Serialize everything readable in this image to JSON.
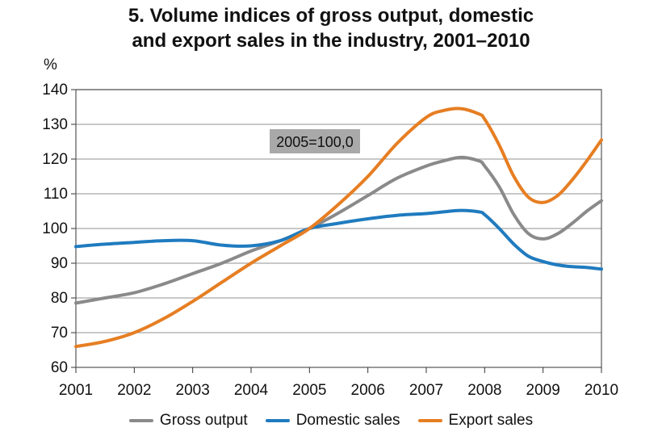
{
  "chart_data": {
    "type": "line",
    "title_line1": "5. Volume indices of gross output, domestic",
    "title_line2": "and export sales in the industry, 2001–2010",
    "ylabel": "%",
    "xlabel": "",
    "ylim": [
      60,
      140
    ],
    "xlim": [
      2001,
      2010
    ],
    "yticks": [
      "60",
      "70",
      "80",
      "90",
      "100",
      "110",
      "120",
      "130",
      "140"
    ],
    "xticks": [
      "2001",
      "2002",
      "2003",
      "2004",
      "2005",
      "2006",
      "2007",
      "2008",
      "2009",
      "2010"
    ],
    "grid": true,
    "legend_position": "bottom",
    "annotation": "2005=100,0",
    "series": [
      {
        "name": "Gross output",
        "color": "#8a8a8a",
        "x": [
          2001,
          2001.5,
          2002,
          2002.5,
          2003,
          2003.5,
          2004,
          2004.5,
          2005,
          2005.5,
          2006,
          2006.5,
          2007,
          2007.3,
          2007.6,
          2007.9,
          2008,
          2008.25,
          2008.5,
          2008.75,
          2009,
          2009.25,
          2009.5,
          2009.75,
          2010
        ],
        "values": [
          78.5,
          80,
          81.5,
          84,
          87,
          90,
          93.5,
          96.5,
          100,
          104.5,
          109.5,
          114.5,
          118,
          119.5,
          120.5,
          119.5,
          118,
          112,
          104,
          98.5,
          97,
          98.5,
          101.5,
          105,
          108
        ]
      },
      {
        "name": "Domestic sales",
        "color": "#1f7bbf",
        "x": [
          2001,
          2001.5,
          2002,
          2002.5,
          2003,
          2003.5,
          2004,
          2004.5,
          2005,
          2005.5,
          2006,
          2006.5,
          2007,
          2007.3,
          2007.6,
          2007.9,
          2008,
          2008.25,
          2008.5,
          2008.75,
          2009,
          2009.25,
          2009.5,
          2009.75,
          2010
        ],
        "values": [
          94.8,
          95.5,
          96,
          96.5,
          96.5,
          95.2,
          95,
          96.5,
          100,
          101.5,
          102.8,
          103.8,
          104.3,
          104.8,
          105.2,
          104.8,
          104,
          100,
          95.5,
          92,
          90.5,
          89.5,
          89,
          88.8,
          88.3
        ]
      },
      {
        "name": "Export sales",
        "color": "#e67e22",
        "x": [
          2001,
          2001.5,
          2002,
          2002.5,
          2003,
          2003.5,
          2004,
          2004.5,
          2005,
          2005.5,
          2006,
          2006.5,
          2007,
          2007.3,
          2007.6,
          2007.9,
          2008,
          2008.25,
          2008.5,
          2008.75,
          2009,
          2009.25,
          2009.5,
          2009.75,
          2010
        ],
        "values": [
          66,
          67.5,
          70,
          74,
          79,
          84.5,
          90,
          95,
          100,
          107,
          115,
          124.5,
          132,
          134,
          134.5,
          133,
          131.5,
          124,
          115,
          109,
          107.5,
          109.5,
          114,
          119.5,
          125.5
        ]
      }
    ]
  }
}
